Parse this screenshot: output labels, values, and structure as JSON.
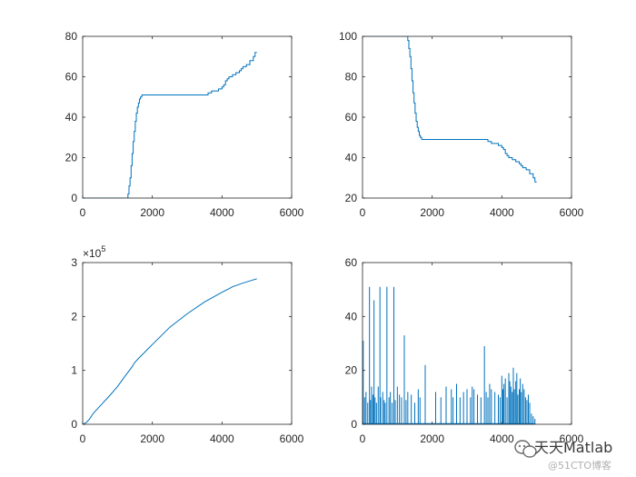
{
  "colors": {
    "line": "#0072BD",
    "axis": "#262626",
    "background": "#ffffff"
  },
  "watermark": {
    "main": "天天Matlab",
    "sub": "@51CTO博客",
    "icon": "wechat-icon"
  },
  "chart_data": [
    {
      "type": "line",
      "xlim": [
        0,
        6000
      ],
      "ylim": [
        0,
        80
      ],
      "xticks": [
        0,
        2000,
        4000,
        6000
      ],
      "yticks": [
        0,
        20,
        40,
        60,
        80
      ],
      "xtick_labels": [
        "0",
        "2000",
        "4000",
        "6000"
      ],
      "ytick_labels": [
        "0",
        "20",
        "40",
        "60",
        "80"
      ],
      "exponent_label": "",
      "series": [
        {
          "style": "step",
          "x": [
            0,
            1280,
            1300,
            1330,
            1360,
            1390,
            1420,
            1450,
            1480,
            1510,
            1540,
            1570,
            1600,
            1630,
            1660,
            1700,
            1750,
            1800,
            1900,
            2000,
            2500,
            3000,
            3500,
            3600,
            3700,
            3800,
            3900,
            4000,
            4050,
            4100,
            4150,
            4200,
            4250,
            4300,
            4350,
            4400,
            4450,
            4500,
            4550,
            4600,
            4650,
            4700,
            4750,
            4800,
            4850,
            4900,
            4950,
            5000
          ],
          "y": [
            0,
            0,
            2,
            6,
            10,
            16,
            22,
            28,
            33,
            38,
            42,
            45,
            47,
            49,
            50,
            51,
            51,
            51,
            51,
            51,
            51,
            51,
            51,
            52,
            53,
            53,
            54,
            55,
            56,
            58,
            59,
            60,
            60,
            61,
            61,
            62,
            62,
            63,
            64,
            65,
            65,
            66,
            66,
            68,
            68,
            70,
            72,
            72
          ]
        }
      ]
    },
    {
      "type": "line",
      "xlim": [
        0,
        6000
      ],
      "ylim": [
        20,
        100
      ],
      "xticks": [
        0,
        2000,
        4000,
        6000
      ],
      "yticks": [
        20,
        40,
        60,
        80,
        100
      ],
      "xtick_labels": [
        "0",
        "2000",
        "4000",
        "6000"
      ],
      "ytick_labels": [
        "20",
        "40",
        "60",
        "80",
        "100"
      ],
      "exponent_label": "",
      "series": [
        {
          "style": "step",
          "x": [
            0,
            1280,
            1300,
            1330,
            1360,
            1390,
            1420,
            1450,
            1480,
            1510,
            1540,
            1570,
            1600,
            1630,
            1660,
            1700,
            1750,
            1800,
            1900,
            2000,
            2500,
            3000,
            3500,
            3600,
            3700,
            3800,
            3900,
            4000,
            4050,
            4100,
            4150,
            4200,
            4250,
            4300,
            4350,
            4400,
            4450,
            4500,
            4550,
            4600,
            4650,
            4700,
            4750,
            4800,
            4850,
            4900,
            4950,
            5000
          ],
          "y": [
            100,
            100,
            98,
            94,
            90,
            84,
            78,
            72,
            67,
            62,
            58,
            55,
            53,
            51,
            50,
            49,
            49,
            49,
            49,
            49,
            49,
            49,
            49,
            48,
            47,
            47,
            46,
            45,
            44,
            42,
            41,
            40,
            40,
            39,
            39,
            38,
            38,
            37,
            36,
            35,
            35,
            34,
            34,
            32,
            32,
            30,
            28,
            28
          ]
        }
      ]
    },
    {
      "type": "line",
      "xlim": [
        0,
        6000
      ],
      "ylim": [
        0,
        300000
      ],
      "xticks": [
        0,
        2000,
        4000,
        6000
      ],
      "yticks": [
        0,
        100000,
        200000,
        300000
      ],
      "xtick_labels": [
        "0",
        "2000",
        "4000",
        "6000"
      ],
      "ytick_labels": [
        "0",
        "1",
        "2",
        "3"
      ],
      "exponent_label": "×10",
      "exponent_power": "5",
      "series": [
        {
          "style": "line",
          "x": [
            0,
            100,
            200,
            300,
            500,
            800,
            1000,
            1200,
            1400,
            1500,
            1600,
            2000,
            2500,
            3000,
            3500,
            4000,
            4300,
            4600,
            4800,
            5000
          ],
          "y": [
            0,
            3000,
            10000,
            20000,
            34000,
            55000,
            70000,
            88000,
            105000,
            115000,
            122000,
            148000,
            180000,
            205000,
            227000,
            245000,
            255000,
            262000,
            266000,
            270000
          ]
        }
      ]
    },
    {
      "type": "line",
      "xlim": [
        0,
        6000
      ],
      "ylim": [
        0,
        60
      ],
      "xticks": [
        0,
        2000,
        4000,
        6000
      ],
      "yticks": [
        0,
        20,
        40,
        60
      ],
      "xtick_labels": [
        "0",
        "2000",
        "4000",
        "6000"
      ],
      "ytick_labels": [
        "0",
        "20",
        "40",
        "60"
      ],
      "exponent_label": "",
      "series": [
        {
          "style": "spikes",
          "baseline": 0,
          "x": [
            20,
            60,
            100,
            150,
            200,
            230,
            260,
            300,
            330,
            360,
            400,
            450,
            500,
            520,
            580,
            620,
            650,
            700,
            760,
            800,
            850,
            900,
            940,
            1000,
            1060,
            1120,
            1200,
            1250,
            1300,
            1400,
            1500,
            1600,
            1650,
            1800,
            2100,
            2250,
            2400,
            2550,
            2600,
            2700,
            2800,
            2900,
            3000,
            3100,
            3150,
            3200,
            3300,
            3400,
            3500,
            3550,
            3600,
            3650,
            3700,
            3800,
            3900,
            3950,
            4000,
            4030,
            4060,
            4100,
            4150,
            4200,
            4230,
            4260,
            4300,
            4330,
            4360,
            4400,
            4430,
            4460,
            4500,
            4530,
            4560,
            4600,
            4640,
            4680,
            4720,
            4760,
            4800,
            4850,
            4900,
            4950
          ],
          "y": [
            31,
            10,
            12,
            8,
            51,
            9,
            14,
            11,
            46,
            10,
            8,
            14,
            51,
            10,
            12,
            9,
            8,
            51,
            10,
            12,
            8,
            51,
            9,
            14,
            11,
            10,
            33,
            9,
            12,
            11,
            8,
            13,
            10,
            22,
            12,
            10,
            14,
            13,
            10,
            15,
            10,
            12,
            13,
            10,
            14,
            13,
            11,
            10,
            29,
            12,
            10,
            15,
            13,
            12,
            11,
            10,
            18,
            13,
            15,
            17,
            10,
            19,
            16,
            14,
            12,
            21,
            13,
            16,
            19,
            11,
            13,
            17,
            12,
            15,
            13,
            10,
            9,
            11,
            8,
            4,
            3,
            2
          ]
        }
      ]
    }
  ]
}
